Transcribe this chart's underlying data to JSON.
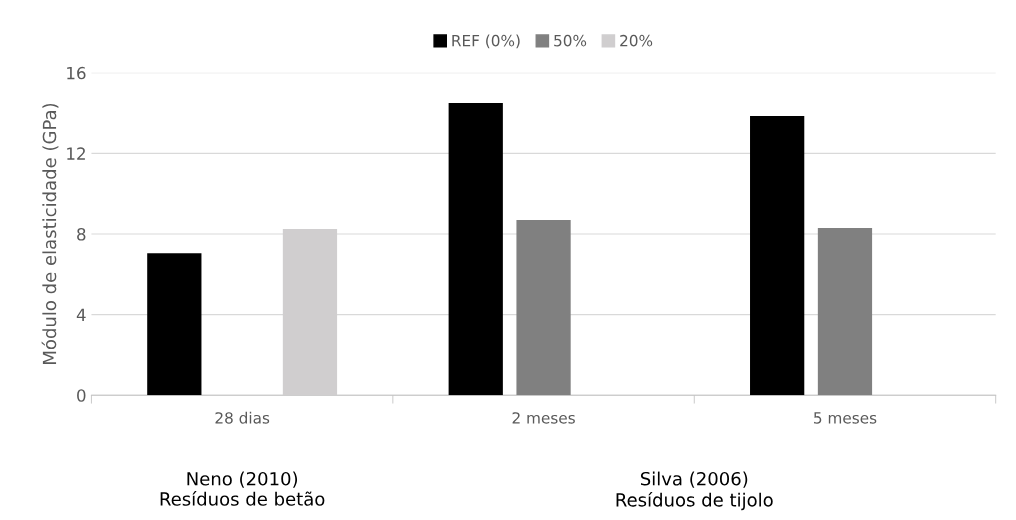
{
  "chart_data": {
    "type": "bar",
    "ylabel": "Módulo de elasticidade (GPa)",
    "categories": [
      "28 dias",
      "2 meses",
      "5 meses"
    ],
    "series": [
      {
        "name": "REF (0%)",
        "color": "#000000",
        "values": [
          7.05,
          14.5,
          13.85
        ]
      },
      {
        "name": "50%",
        "color": "#808080",
        "values": [
          null,
          8.7,
          8.3
        ]
      },
      {
        "name": "20%",
        "color": "#d0cecf",
        "values": [
          8.25,
          null,
          null
        ]
      }
    ],
    "ylim": [
      0,
      16
    ],
    "yticks": [
      0,
      4,
      8,
      12,
      16
    ],
    "grid": "y",
    "legend": "top",
    "annotations": [
      "Neno (2010)\nResíduos de betão",
      "Silva (2006)\nResíduos de tijolo"
    ]
  }
}
